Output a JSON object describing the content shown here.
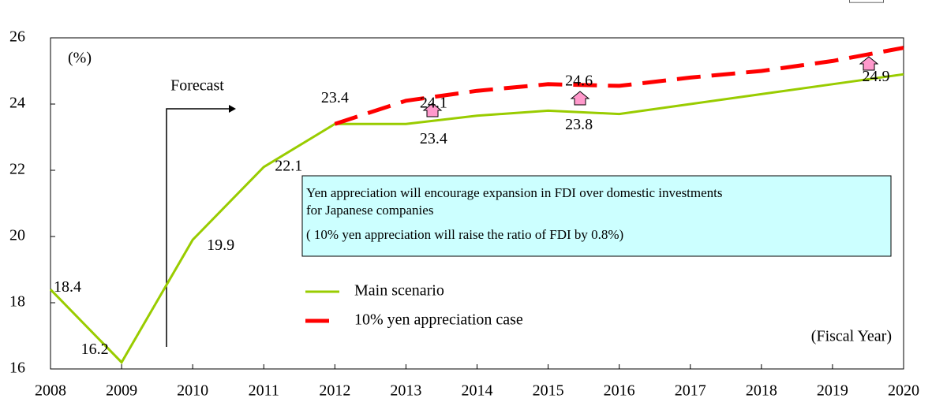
{
  "chart_data": {
    "type": "line",
    "x": [
      2008,
      2009,
      2010,
      2011,
      2012,
      2013,
      2014,
      2015,
      2016,
      2017,
      2018,
      2019,
      2020
    ],
    "xlim": [
      2008,
      2020
    ],
    "xticks": [
      2008,
      2009,
      2010,
      2011,
      2012,
      2013,
      2014,
      2015,
      2016,
      2017,
      2018,
      2019,
      2020
    ],
    "ylim": [
      16,
      26
    ],
    "yticks": [
      16,
      18,
      20,
      22,
      24,
      26
    ],
    "y_label": "(%)",
    "x_label": "(Fiscal Year)",
    "grid": false,
    "series": [
      {
        "name": "Main scenario",
        "color": "#99cc00",
        "values": [
          18.4,
          16.2,
          19.9,
          22.1,
          23.4,
          23.4,
          23.65,
          23.8,
          23.7,
          24.0,
          24.3,
          24.6,
          24.9
        ],
        "value_labels": [
          "18.4",
          "16.2",
          "19.9",
          "22.1",
          "23.4",
          "23.4",
          null,
          "23.8",
          null,
          null,
          null,
          null,
          "24.9"
        ]
      },
      {
        "name": "10% yen appreciation case",
        "color": "#ff0000",
        "dashed": true,
        "values": [
          null,
          null,
          null,
          null,
          23.4,
          24.1,
          24.4,
          24.6,
          24.55,
          24.8,
          25.0,
          25.3,
          25.7
        ],
        "value_labels": [
          null,
          null,
          null,
          null,
          null,
          "24.1",
          null,
          "24.6",
          null,
          null,
          null,
          null,
          "25.7"
        ]
      }
    ],
    "annotations": {
      "forecast": "Forecast",
      "note": [
        "Yen appreciation will encourage expansion in FDI over domestic investments",
        "for Japanese companies",
        "( 10% yen appreciation will raise the ratio of FDI by 0.8%)"
      ]
    }
  }
}
